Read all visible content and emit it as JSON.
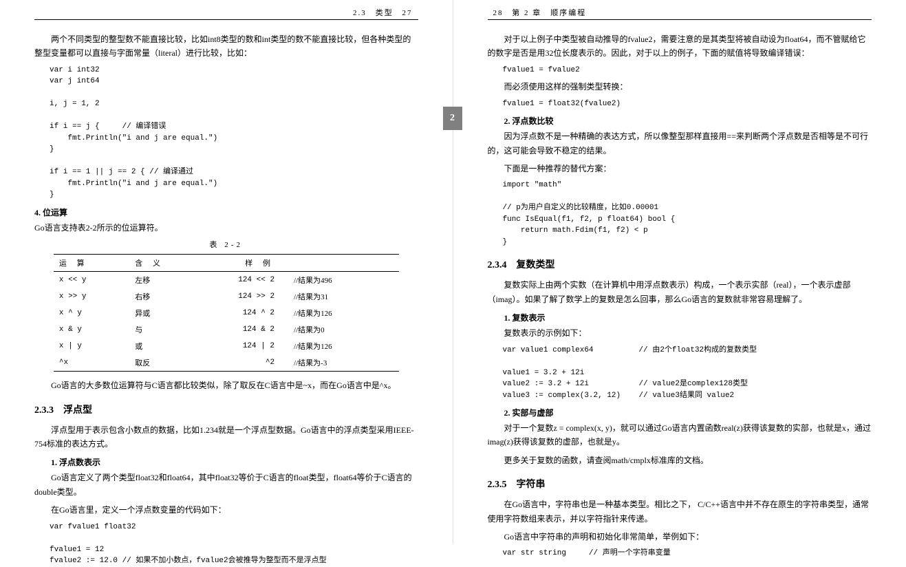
{
  "left": {
    "header_section": "2.3　类型",
    "header_page": "27",
    "p1": "两个不同类型的整型数不能直接比较，比如int8类型的数和int类型的数不能直接比较，但各种类型的整型变量都可以直接与字面常量（literal）进行比较，比如：",
    "code1": "var i int32\nvar j int64\n\ni, j = 1, 2\n\nif i == j {     // 编译错误\n    fmt.Println(\"i and j are equal.\")\n}\n\nif i == 1 || j == 2 { // 编译通过\n    fmt.Println(\"i and j are equal.\")\n}",
    "sec4_title": "4. 位运算",
    "sec4_p": "Go语言支持表2-2所示的位运算符。",
    "table_caption": "表  2-2",
    "table_headers": [
      "运  算",
      "含  义",
      "样  例",
      ""
    ],
    "table_rows": [
      [
        "x << y",
        "左移",
        "124 << 2",
        "//结果为496"
      ],
      [
        "x >> y",
        "右移",
        "124 >> 2",
        "//结果为31"
      ],
      [
        "x ^ y",
        "异或",
        "124 ^ 2",
        "//结果为126"
      ],
      [
        "x & y",
        "与",
        "124 & 2",
        "//结果为0"
      ],
      [
        "x | y",
        "或",
        "124 | 2",
        "//结果为126"
      ],
      [
        "^x",
        "取反",
        "^2",
        "//结果为-3"
      ]
    ],
    "p_after_table": "Go语言的大多数位运算符与C语言都比较类似，除了取反在C语言中是~x，而在Go语言中是^x。",
    "h233_title": "2.3.3　浮点型",
    "h233_p1": "浮点型用于表示包含小数点的数据，比如1.234就是一个浮点型数据。Go语言中的浮点类型采用IEEE-754标准的表达方式。",
    "sec_float1_title": "1. 浮点数表示",
    "sec_float1_p": "Go语言定义了两个类型float32和float64，其中float32等价于C语言的float类型，float64等价于C语言的double类型。",
    "sec_float1_p2": "在Go语言里，定义一个浮点数变量的代码如下：",
    "code_float": "var fvalue1 float32\n\nfvalue1 = 12\nfvalue2 := 12.0 // 如果不加小数点，fvalue2会被推导为整型而不是浮点型",
    "tab_label": "2"
  },
  "right": {
    "header_page": "28",
    "header_section": "第 2 章　顺序编程",
    "p1": "对于以上例子中类型被自动推导的fvalue2，需要注意的是其类型将被自动设为float64，而不管赋给它的数字是否是用32位长度表示的。因此，对于以上的例子，下面的赋值将导致编译错误：",
    "code1": "fvalue1 = fvalue2",
    "p2": "而必须使用这样的强制类型转换：",
    "code2": "fvalue1 = float32(fvalue2)",
    "sec2_title": "2. 浮点数比较",
    "sec2_p1": "因为浮点数不是一种精确的表达方式，所以像整型那样直接用==来判断两个浮点数是否相等是不可行的，这可能会导致不稳定的结果。",
    "sec2_p2": "下面是一种推荐的替代方案：",
    "code3": "import \"math\"\n\n// p为用户自定义的比较精度，比如0.00001\nfunc IsEqual(f1, f2, p float64) bool {\n    return math.Fdim(f1, f2) < p\n}",
    "h234_title": "2.3.4　复数类型",
    "h234_p1": "复数实际上由两个实数（在计算机中用浮点数表示）构成，一个表示实部（real），一个表示虚部（imag）。如果了解了数学上的复数是怎么回事，那么Go语言的复数就非常容易理解了。",
    "sec_c1_title": "1. 复数表示",
    "sec_c1_p": "复数表示的示例如下：",
    "code4": "var value1 complex64          // 由2个float32构成的复数类型\n\nvalue1 = 3.2 + 12i\nvalue2 := 3.2 + 12i           // value2是complex128类型\nvalue3 := complex(3.2, 12)    // value3结果同 value2",
    "sec_c2_title": "2. 实部与虚部",
    "sec_c2_p1": "对于一个复数z = complex(x, y)，就可以通过Go语言内置函数real(z)获得该复数的实部，也就是x，通过imag(z)获得该复数的虚部，也就是y。",
    "sec_c2_p2": "更多关于复数的函数，请查阅math/cmplx标准库的文档。",
    "h235_title": "2.3.5　字符串",
    "h235_p1": "在Go语言中，字符串也是一种基本类型。相比之下， C/C++语言中并不存在原生的字符串类型，通常使用字符数组来表示，并以字符指针来传递。",
    "h235_p2": "Go语言中字符串的声明和初始化非常简单，举例如下：",
    "code5": "var str string     // 声明一个字符串变量"
  }
}
